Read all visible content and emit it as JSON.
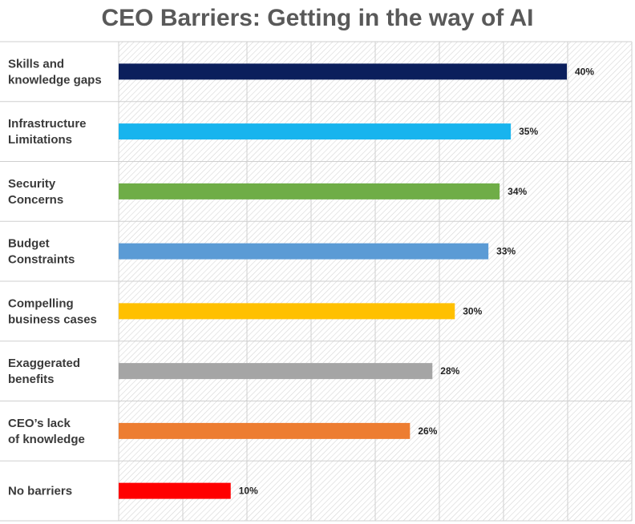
{
  "chart_data": {
    "type": "bar",
    "orientation": "horizontal",
    "title": "CEO Barriers: Getting in the way of AI",
    "categories": [
      [
        "Skills and",
        "knowledge gaps"
      ],
      [
        "Infrastructure",
        "Limitations"
      ],
      [
        "Security",
        "Concerns"
      ],
      [
        "Budget",
        "Constraints"
      ],
      [
        "Compelling",
        "business cases"
      ],
      [
        "Exaggerated",
        "benefits"
      ],
      [
        "CEO’s lack",
        "of knowledge"
      ],
      [
        "No barriers"
      ]
    ],
    "values": [
      40,
      35,
      34,
      33,
      30,
      28,
      26,
      10
    ],
    "value_labels": [
      "40%",
      "35%",
      "34%",
      "33%",
      "30%",
      "28%",
      "26%",
      "10%"
    ],
    "colors": [
      "#0b1f5c",
      "#18b4ee",
      "#6fad47",
      "#5b9bd5",
      "#ffc000",
      "#a5a5a5",
      "#ed7d31",
      "#ff0000"
    ],
    "xlim": [
      0,
      40
    ],
    "grid": true,
    "background": "hatched"
  }
}
